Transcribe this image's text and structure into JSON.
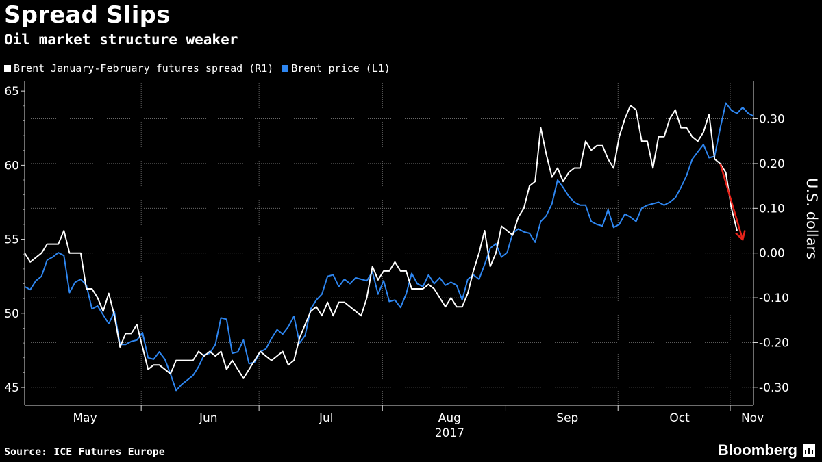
{
  "header": {
    "title": "Spread Slips",
    "subtitle": "Oil market structure weaker"
  },
  "footer": {
    "source": "Source: ICE Futures Europe",
    "brand": "Bloomberg"
  },
  "chart_data": {
    "type": "line",
    "grid": true,
    "legend_position": "top-left",
    "x_tick_labels": [
      "May",
      "Jun",
      "Jul",
      "Aug",
      "Sep",
      "Oct",
      "Nov"
    ],
    "x_year_label": "2017",
    "y_left": {
      "ticks": [
        45,
        50,
        55,
        60,
        65
      ],
      "range": [
        43.8,
        65.7
      ]
    },
    "y_right": {
      "label": "U.S. dollars",
      "tick_labels": [
        "0.30",
        "0.20",
        "0.10",
        "0.00",
        "-0.10",
        "-0.20",
        "-0.30"
      ],
      "ticks": [
        0.3,
        0.2,
        0.1,
        0.0,
        -0.1,
        -0.2,
        -0.3
      ],
      "range": [
        -0.34,
        0.385
      ]
    },
    "series": [
      {
        "name": "Brent January-February futures spread (R1)",
        "axis": "right",
        "color": "#ffffff",
        "values": [
          0.0,
          -0.02,
          -0.01,
          0.0,
          0.02,
          0.02,
          0.02,
          0.05,
          0.0,
          0.0,
          0.0,
          -0.08,
          -0.08,
          -0.1,
          -0.13,
          -0.09,
          -0.14,
          -0.21,
          -0.18,
          -0.18,
          -0.16,
          -0.21,
          -0.26,
          -0.25,
          -0.25,
          -0.26,
          -0.27,
          -0.24,
          -0.24,
          -0.24,
          -0.24,
          -0.22,
          -0.23,
          -0.22,
          -0.23,
          -0.22,
          -0.26,
          -0.24,
          -0.26,
          -0.28,
          -0.26,
          -0.24,
          -0.22,
          -0.23,
          -0.24,
          -0.23,
          -0.22,
          -0.25,
          -0.24,
          -0.19,
          -0.16,
          -0.13,
          -0.12,
          -0.14,
          -0.11,
          -0.14,
          -0.11,
          -0.11,
          -0.12,
          -0.13,
          -0.14,
          -0.1,
          -0.03,
          -0.06,
          -0.04,
          -0.04,
          -0.02,
          -0.04,
          -0.04,
          -0.08,
          -0.08,
          -0.08,
          -0.07,
          -0.08,
          -0.1,
          -0.12,
          -0.1,
          -0.12,
          -0.12,
          -0.09,
          -0.04,
          0.0,
          0.05,
          -0.03,
          0.0,
          0.06,
          0.05,
          0.04,
          0.08,
          0.1,
          0.15,
          0.16,
          0.28,
          0.22,
          0.17,
          0.19,
          0.16,
          0.18,
          0.19,
          0.19,
          0.25,
          0.23,
          0.24,
          0.24,
          0.21,
          0.19,
          0.26,
          0.3,
          0.33,
          0.32,
          0.25,
          0.25,
          0.19,
          0.26,
          0.26,
          0.3,
          0.32,
          0.28,
          0.28,
          0.26,
          0.25,
          0.27,
          0.31,
          0.21,
          0.2,
          0.18,
          0.1,
          0.05
        ]
      },
      {
        "name": "Brent price (L1)",
        "axis": "left",
        "color": "#2e86f0",
        "values": [
          51.8,
          51.6,
          52.2,
          52.5,
          53.6,
          53.8,
          54.1,
          53.9,
          51.4,
          52.1,
          52.3,
          51.9,
          50.3,
          50.5,
          49.9,
          49.3,
          50.1,
          47.9,
          47.9,
          48.1,
          48.2,
          48.7,
          47.0,
          46.9,
          47.4,
          46.9,
          45.9,
          44.8,
          45.2,
          45.5,
          45.8,
          46.4,
          47.2,
          47.3,
          47.9,
          49.7,
          49.6,
          47.3,
          47.4,
          48.2,
          46.6,
          46.7,
          47.4,
          47.6,
          48.3,
          48.9,
          48.6,
          49.1,
          49.8,
          48.0,
          48.5,
          50.3,
          50.9,
          51.3,
          52.5,
          52.6,
          51.8,
          52.3,
          52.0,
          52.4,
          52.3,
          52.2,
          52.8,
          51.3,
          52.2,
          50.8,
          50.9,
          50.4,
          51.3,
          52.7,
          52.0,
          51.8,
          52.6,
          52.0,
          52.4,
          51.9,
          52.1,
          51.9,
          50.9,
          52.3,
          52.6,
          52.3,
          53.3,
          54.4,
          54.7,
          53.8,
          54.1,
          55.4,
          55.7,
          55.5,
          55.4,
          54.8,
          56.2,
          56.6,
          57.4,
          59.0,
          58.5,
          57.9,
          57.5,
          57.3,
          57.3,
          56.2,
          56.0,
          55.9,
          57.0,
          55.8,
          56.0,
          56.7,
          56.5,
          56.2,
          57.1,
          57.3,
          57.4,
          57.5,
          57.3,
          57.5,
          57.8,
          58.5,
          59.3,
          60.4,
          60.9,
          61.4,
          60.5,
          60.6,
          62.5,
          64.2,
          63.7,
          63.5,
          63.9,
          63.5,
          63.3
        ]
      }
    ],
    "annotation": {
      "type": "arrow",
      "color": "#e8231a",
      "from": {
        "index": 124,
        "value": 0.2
      },
      "to": {
        "index": 128,
        "value": 0.03
      }
    }
  }
}
